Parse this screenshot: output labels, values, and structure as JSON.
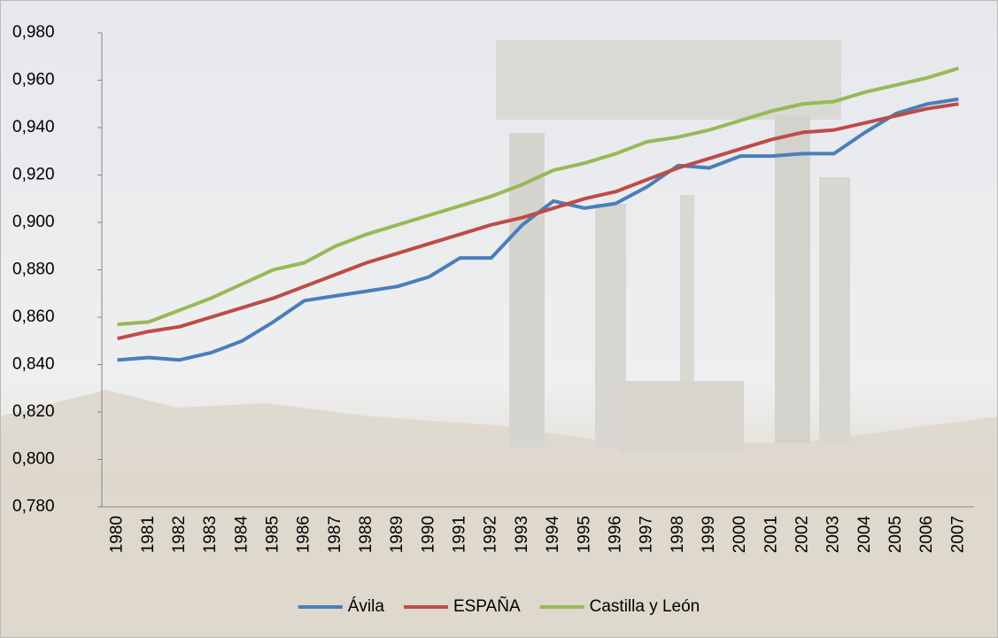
{
  "chart_data": {
    "type": "line",
    "categories": [
      "1980",
      "1981",
      "1982",
      "1983",
      "1984",
      "1985",
      "1986",
      "1987",
      "1988",
      "1989",
      "1990",
      "1991",
      "1992",
      "1993",
      "1994",
      "1995",
      "1996",
      "1997",
      "1998",
      "1999",
      "2000",
      "2001",
      "2002",
      "2003",
      "2004",
      "2005",
      "2006",
      "2007"
    ],
    "series": [
      {
        "name": "Ávila",
        "color": "#4a7ebb",
        "values": [
          0.842,
          0.843,
          0.842,
          0.845,
          0.85,
          0.858,
          0.867,
          0.869,
          0.871,
          0.873,
          0.877,
          0.885,
          0.885,
          0.899,
          0.909,
          0.906,
          0.908,
          0.915,
          0.924,
          0.923,
          0.928,
          0.928,
          0.929,
          0.929,
          0.938,
          0.946,
          0.95,
          0.952
        ]
      },
      {
        "name": "ESPAÑA",
        "color": "#be4b48",
        "values": [
          0.851,
          0.854,
          0.856,
          0.86,
          0.864,
          0.868,
          0.873,
          0.878,
          0.883,
          0.887,
          0.891,
          0.895,
          0.899,
          0.902,
          0.906,
          0.91,
          0.913,
          0.918,
          0.923,
          0.927,
          0.931,
          0.935,
          0.938,
          0.939,
          0.942,
          0.945,
          0.948,
          0.95
        ]
      },
      {
        "name": "Castilla y León",
        "color": "#98b954",
        "values": [
          0.857,
          0.858,
          0.863,
          0.868,
          0.874,
          0.88,
          0.883,
          0.89,
          0.895,
          0.899,
          0.903,
          0.907,
          0.911,
          0.916,
          0.922,
          0.925,
          0.929,
          0.934,
          0.936,
          0.939,
          0.943,
          0.947,
          0.95,
          0.951,
          0.955,
          0.958,
          0.961,
          0.965
        ]
      }
    ],
    "ylim": [
      0.78,
      0.98
    ],
    "yticks": [
      {
        "value": 0.78,
        "label": "0,780"
      },
      {
        "value": 0.8,
        "label": "0,800"
      },
      {
        "value": 0.82,
        "label": "0,820"
      },
      {
        "value": 0.84,
        "label": "0,840"
      },
      {
        "value": 0.86,
        "label": "0,860"
      },
      {
        "value": 0.88,
        "label": "0,880"
      },
      {
        "value": 0.9,
        "label": "0,900"
      },
      {
        "value": 0.92,
        "label": "0,920"
      },
      {
        "value": 0.94,
        "label": "0,940"
      },
      {
        "value": 0.96,
        "label": "0,960"
      },
      {
        "value": 0.98,
        "label": "0,980"
      }
    ],
    "legend": "bottom"
  }
}
